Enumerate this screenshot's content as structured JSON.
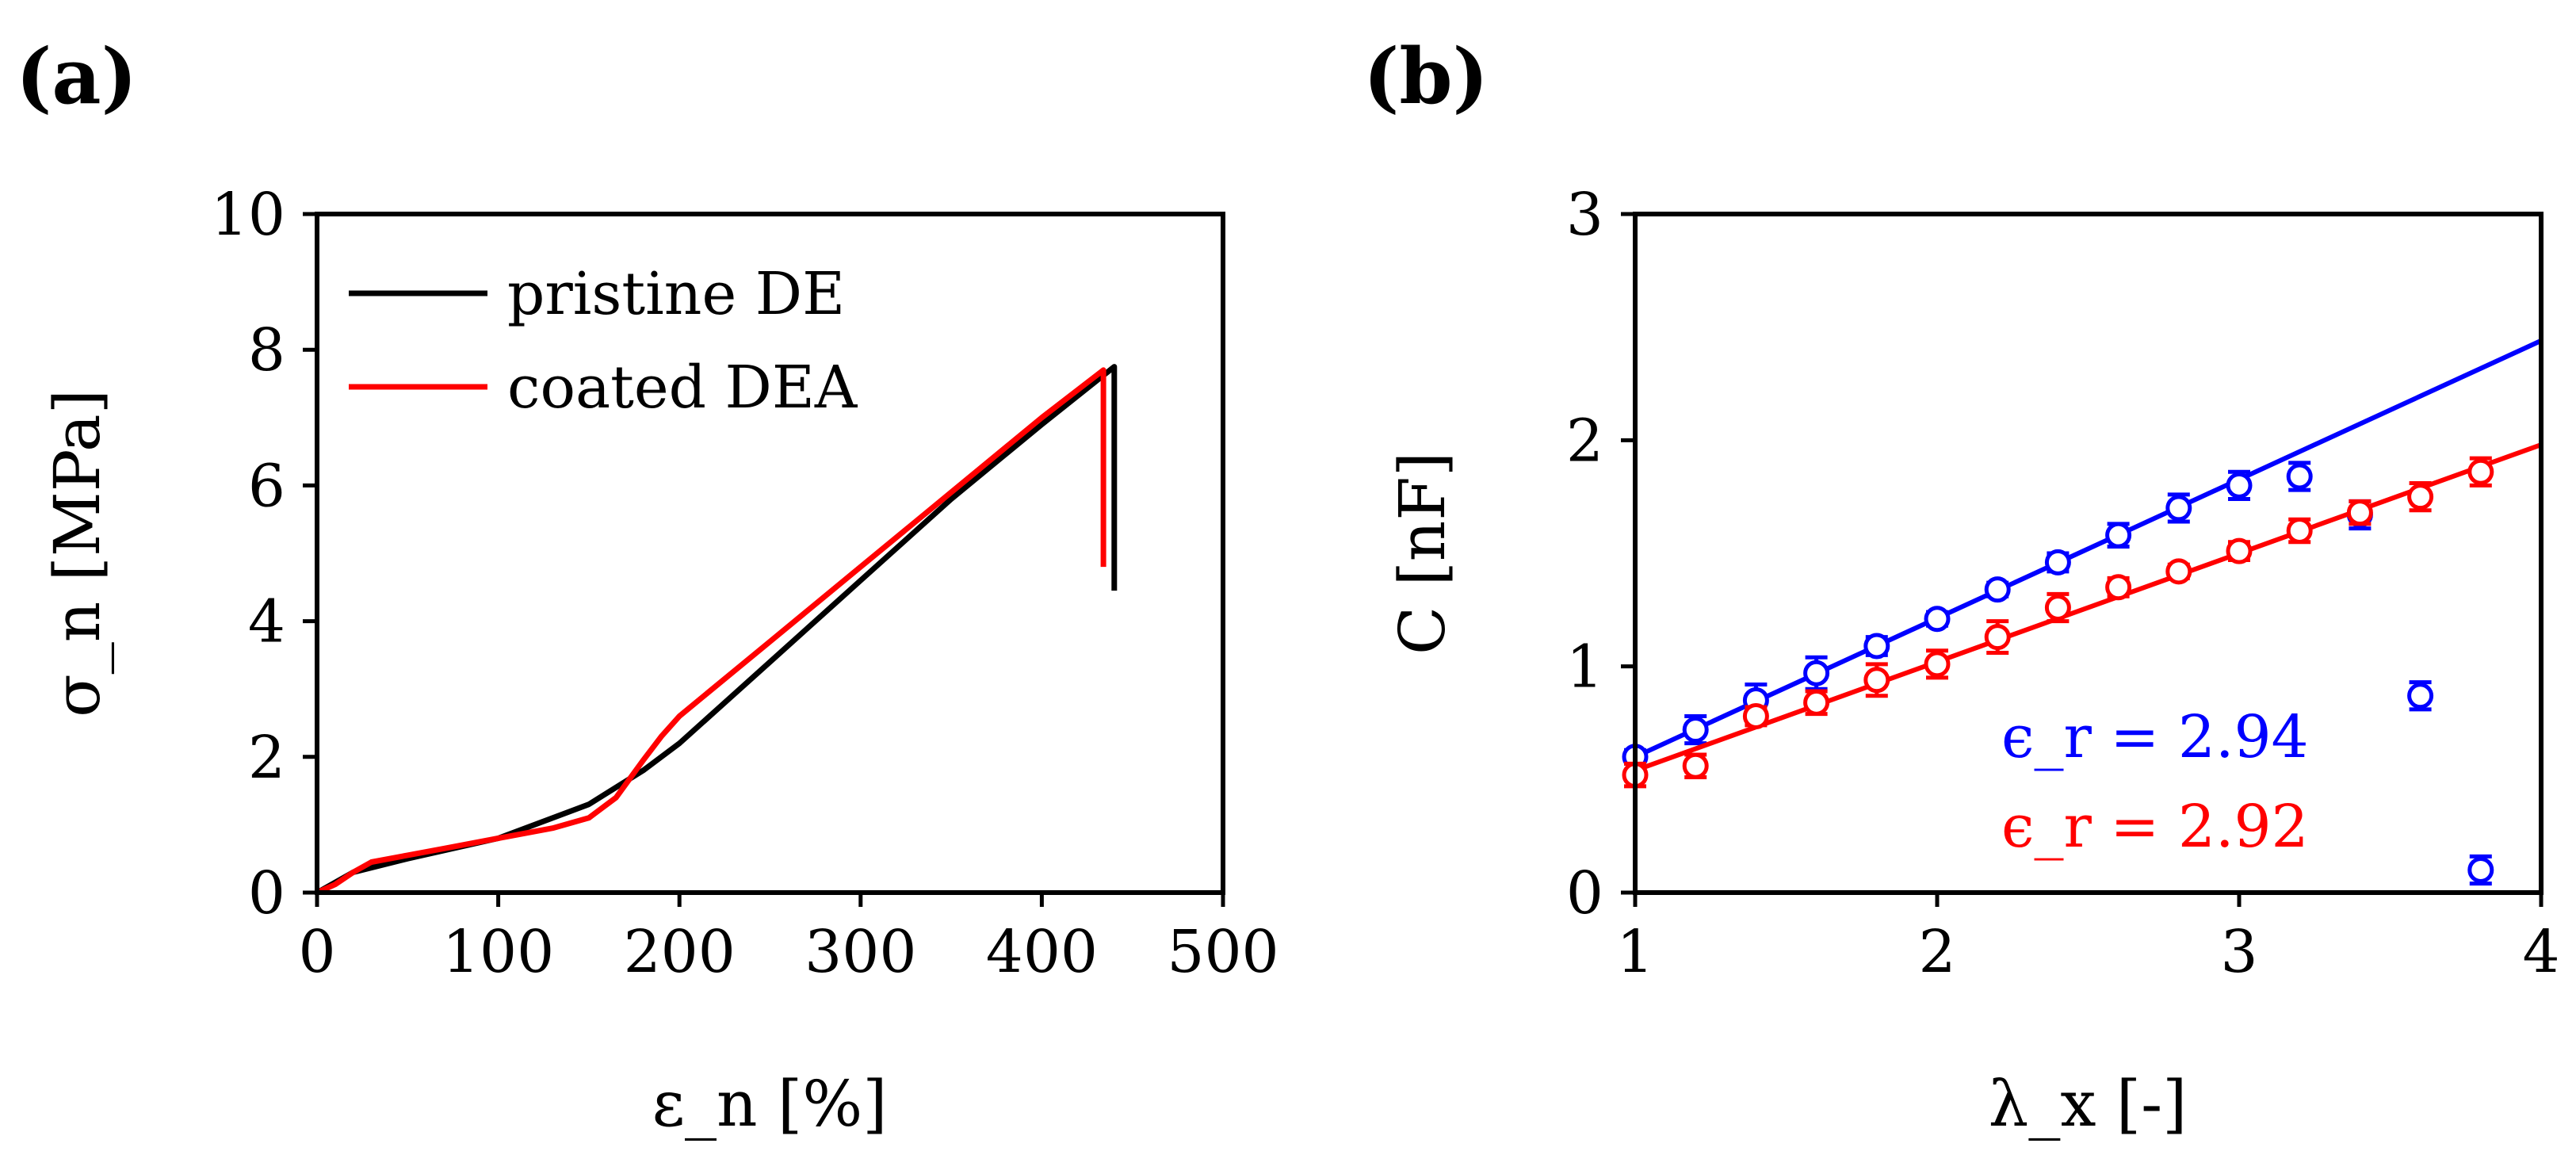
{
  "chart_data": [
    {
      "panel": "(a)",
      "type": "line",
      "xlabel": "ε_n [%]",
      "ylabel": "σ_n [MPa]",
      "xlim": [
        0,
        500
      ],
      "ylim": [
        0,
        10
      ],
      "xticks": [
        "0",
        "100",
        "200",
        "300",
        "400",
        "500"
      ],
      "yticks": [
        "0",
        "2",
        "4",
        "6",
        "8",
        "10"
      ],
      "legend_position": "top-left",
      "series": [
        {
          "name": "pristine DE",
          "color": "#000000",
          "x": [
            0,
            20,
            50,
            100,
            150,
            180,
            200,
            250,
            300,
            350,
            400,
            440,
            440
          ],
          "y": [
            0,
            0.3,
            0.5,
            0.8,
            1.3,
            1.8,
            2.2,
            3.4,
            4.6,
            5.8,
            6.9,
            7.75,
            4.45
          ]
        },
        {
          "name": "coated DEA",
          "color": "#ff0000",
          "x": [
            0,
            10,
            20,
            30,
            50,
            70,
            100,
            130,
            150,
            165,
            180,
            190,
            200,
            250,
            300,
            350,
            400,
            434,
            434
          ],
          "y": [
            0,
            0.12,
            0.3,
            0.45,
            0.55,
            0.65,
            0.8,
            0.95,
            1.1,
            1.4,
            1.95,
            2.3,
            2.6,
            3.7,
            4.8,
            5.9,
            7.0,
            7.7,
            4.8
          ]
        }
      ]
    },
    {
      "panel": "(b)",
      "type": "scatter",
      "xlabel": "λ_x [-]",
      "ylabel": "C [nF]",
      "xlim": [
        1,
        4
      ],
      "ylim": [
        0,
        3
      ],
      "xticks": [
        "1",
        "2",
        "3",
        "4"
      ],
      "yticks": [
        "0",
        "1",
        "2",
        "3"
      ],
      "series": [
        {
          "name": "blue",
          "color": "#0000ff",
          "fit_label": "ϵ_r = 2.94",
          "fit": {
            "x": [
              1,
              4
            ],
            "y": [
              0.6,
              2.44
            ]
          },
          "x": [
            1.0,
            1.2,
            1.4,
            1.6,
            1.8,
            2.0,
            2.2,
            2.4,
            2.6,
            2.8,
            3.0,
            3.2,
            3.4,
            3.6,
            3.8
          ],
          "y": [
            0.6,
            0.72,
            0.85,
            0.97,
            1.09,
            1.21,
            1.34,
            1.46,
            1.58,
            1.7,
            1.8,
            1.84,
            1.67,
            0.87,
            0.1
          ],
          "err": [
            0.03,
            0.06,
            0.07,
            0.07,
            0.04,
            0.03,
            0.03,
            0.04,
            0.05,
            0.06,
            0.06,
            0.06,
            0.06,
            0.06,
            0.06
          ]
        },
        {
          "name": "red",
          "color": "#ff0000",
          "fit_label": "ϵ_r = 2.92",
          "fit": {
            "x": [
              1,
              4
            ],
            "y": [
              0.54,
              1.98
            ]
          },
          "x": [
            1.0,
            1.2,
            1.4,
            1.6,
            1.8,
            2.0,
            2.2,
            2.4,
            2.6,
            2.8,
            3.0,
            3.2,
            3.4,
            3.6,
            3.8
          ],
          "y": [
            0.52,
            0.56,
            0.78,
            0.84,
            0.94,
            1.01,
            1.13,
            1.26,
            1.35,
            1.42,
            1.51,
            1.6,
            1.68,
            1.75,
            1.86
          ],
          "err": [
            0.05,
            0.05,
            0.04,
            0.05,
            0.07,
            0.06,
            0.07,
            0.06,
            0.04,
            0.03,
            0.04,
            0.05,
            0.05,
            0.06,
            0.06
          ]
        }
      ]
    }
  ]
}
